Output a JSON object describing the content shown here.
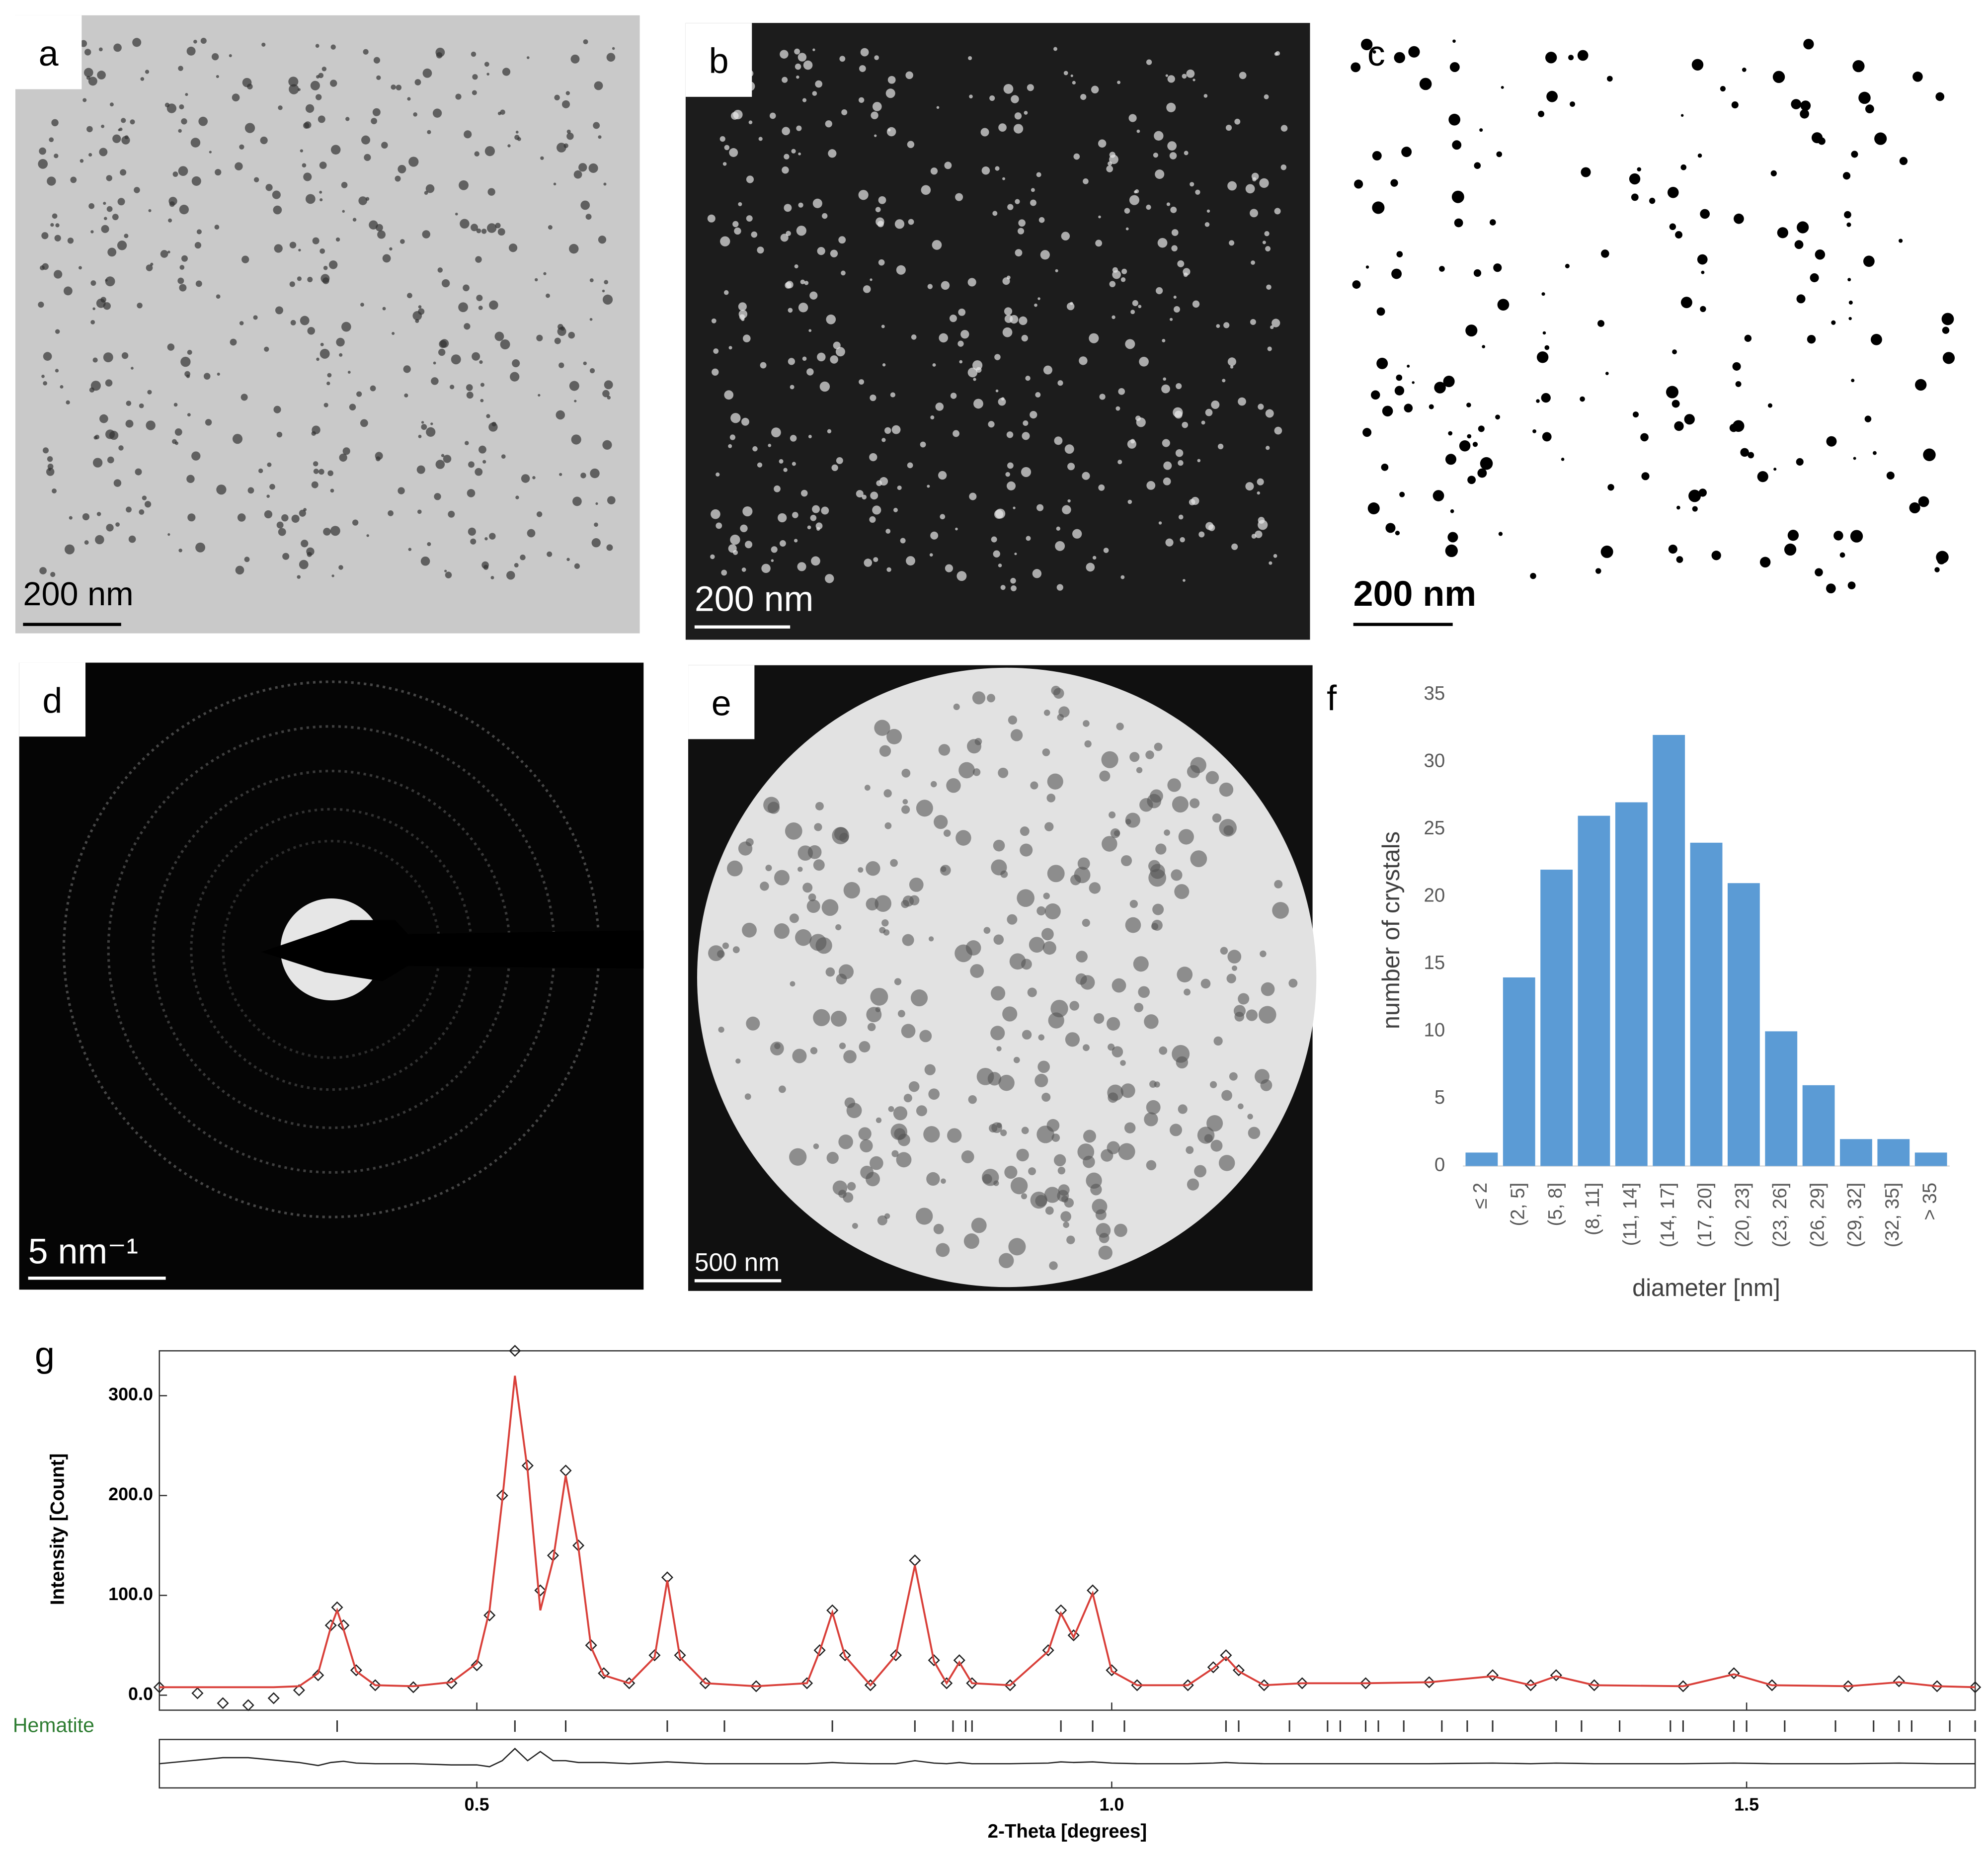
{
  "images": [
    {
      "label": "a",
      "scale_bar": "200 nm"
    },
    {
      "label": "b",
      "scale_bar": "200 nm"
    },
    {
      "label": "c",
      "scale_bar": "200 nm"
    },
    {
      "label": "d",
      "scale_bar": "5 nm⁻¹"
    },
    {
      "label": "e",
      "scale_bar": "500 nm"
    }
  ],
  "chart_data": [
    {
      "type": "bar",
      "label": "f",
      "color": "#5b9bd5",
      "categories": [
        "≤ 2",
        "(2, 5]",
        "(5, 8]",
        "(8, 11]",
        "(11, 14]",
        "(14, 17]",
        "(17, 20]",
        "(20, 23]",
        "(23, 26]",
        "(26, 29]",
        "(29, 32]",
        "(32, 35]",
        "> 35"
      ],
      "values": [
        1,
        14,
        22,
        26,
        27,
        32,
        24,
        21,
        10,
        6,
        2,
        2,
        1
      ],
      "ylim": [
        0,
        35
      ],
      "yticks": [
        0,
        5,
        10,
        15,
        20,
        25,
        30,
        35
      ],
      "x_label": "diameter [nm]",
      "y_label": "number of crystals"
    },
    {
      "type": "line",
      "label": "g",
      "x_label": "2-Theta [degrees]",
      "y_label": "Intensity [Count]",
      "xlim": [
        0.25,
        1.68
      ],
      "xticks": [
        0.5,
        {
          "value": 1,
          "label": "1.0"
        },
        1.5
      ],
      "ylim": [
        -15,
        345
      ],
      "yticks": [
        {
          "value": 0,
          "label": "0.0"
        },
        {
          "value": 100,
          "label": "100.0"
        },
        {
          "value": 200,
          "label": "200.0"
        },
        {
          "value": 300,
          "label": "300.0"
        }
      ],
      "x": [
        0.25,
        0.28,
        0.3,
        0.32,
        0.34,
        0.36,
        0.375,
        0.385,
        0.39,
        0.395,
        0.405,
        0.42,
        0.45,
        0.48,
        0.5,
        0.51,
        0.52,
        0.53,
        0.54,
        0.55,
        0.56,
        0.57,
        0.58,
        0.59,
        0.6,
        0.62,
        0.64,
        0.65,
        0.66,
        0.68,
        0.72,
        0.76,
        0.77,
        0.78,
        0.79,
        0.81,
        0.83,
        0.845,
        0.86,
        0.87,
        0.88,
        0.89,
        0.92,
        0.95,
        0.96,
        0.97,
        0.985,
        1.0,
        1.02,
        1.06,
        1.08,
        1.09,
        1.1,
        1.12,
        1.15,
        1.2,
        1.25,
        1.3,
        1.33,
        1.35,
        1.38,
        1.45,
        1.49,
        1.52,
        1.58,
        1.62,
        1.65,
        1.68
      ],
      "series": [
        {
          "color": "#222222",
          "marker": "diamond",
          "values": [
            8,
            2,
            -8,
            -10,
            -3,
            5,
            20,
            70,
            88,
            70,
            25,
            10,
            8,
            12,
            30,
            80,
            200,
            345,
            230,
            105,
            140,
            225,
            150,
            50,
            22,
            12,
            40,
            118,
            40,
            12,
            9,
            12,
            45,
            85,
            40,
            10,
            40,
            135,
            35,
            12,
            35,
            12,
            10,
            45,
            85,
            60,
            105,
            25,
            10,
            10,
            28,
            40,
            25,
            10,
            12,
            12,
            13,
            20,
            10,
            20,
            10,
            9,
            22,
            10,
            9,
            14,
            9,
            8
          ]
        },
        {
          "color": "#d9403a",
          "values": [
            8,
            8,
            8,
            8,
            8,
            9,
            22,
            68,
            85,
            66,
            24,
            10,
            9,
            13,
            32,
            85,
            195,
            320,
            225,
            85,
            135,
            220,
            148,
            48,
            20,
            12,
            38,
            115,
            38,
            12,
            9,
            12,
            44,
            83,
            39,
            10,
            40,
            130,
            34,
            12,
            33,
            12,
            10,
            44,
            82,
            58,
            102,
            24,
            10,
            10,
            27,
            38,
            24,
            10,
            12,
            12,
            13,
            19,
            10,
            19,
            10,
            9,
            21,
            10,
            9,
            13,
            9,
            8
          ]
        }
      ],
      "difference": {
        "ylim": [
          -40,
          40
        ],
        "color": "#222222",
        "values": [
          0,
          6,
          10,
          10,
          6,
          2,
          -3,
          2,
          3,
          4,
          1,
          0,
          0,
          -2,
          -2,
          -5,
          5,
          25,
          5,
          20,
          5,
          5,
          2,
          2,
          2,
          0,
          2,
          3,
          2,
          0,
          0,
          0,
          1,
          2,
          1,
          0,
          0,
          5,
          1,
          0,
          2,
          0,
          0,
          1,
          3,
          2,
          3,
          1,
          0,
          0,
          1,
          2,
          1,
          0,
          0,
          0,
          0,
          1,
          0,
          1,
          0,
          0,
          1,
          0,
          0,
          1,
          0,
          0
        ]
      },
      "reflections": {
        "label": "Hematite",
        "color": "#2e7d32",
        "x": [
          0.39,
          0.53,
          0.57,
          0.65,
          0.695,
          0.78,
          0.845,
          0.875,
          0.885,
          0.89,
          0.96,
          0.985,
          1.01,
          1.09,
          1.1,
          1.14,
          1.17,
          1.18,
          1.2,
          1.21,
          1.23,
          1.26,
          1.28,
          1.3,
          1.35,
          1.37,
          1.4,
          1.44,
          1.45,
          1.49,
          1.5,
          1.53,
          1.57,
          1.6,
          1.62,
          1.63,
          1.66,
          1.68
        ]
      }
    }
  ]
}
